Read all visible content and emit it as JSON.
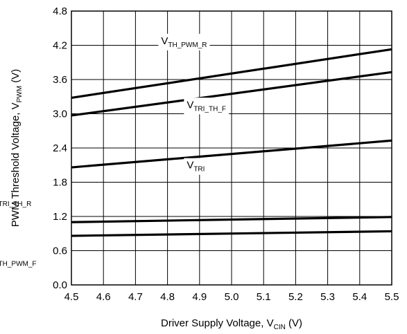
{
  "chart_data": {
    "type": "line",
    "xlabel": {
      "main": "Driver Supply Voltage, V",
      "sub": "CIN",
      "unit": " (V)"
    },
    "ylabel": {
      "main": "PWM Threshold Voltage, V",
      "sub": "PWM",
      "unit": " (V)"
    },
    "xlim": [
      4.5,
      5.5
    ],
    "ylim": [
      0.0,
      4.8
    ],
    "xticks": [
      "4.5",
      "4.6",
      "4.7",
      "4.8",
      "4.9",
      "5.0",
      "5.1",
      "5.2",
      "5.3",
      "5.4",
      "5.5"
    ],
    "yticks": [
      "0.0",
      "0.6",
      "1.2",
      "1.8",
      "2.4",
      "3.0",
      "3.6",
      "4.2",
      "4.8"
    ],
    "grid": true,
    "series": [
      {
        "name": "V_TH_PWM_R",
        "label_main": "V",
        "label_sub": "TH_PWM_R",
        "x": [
          4.5,
          5.5
        ],
        "y": [
          3.28,
          4.13
        ]
      },
      {
        "name": "V_TRI_TH_F",
        "label_main": "V",
        "label_sub": "TRI_TH_F",
        "x": [
          4.5,
          5.5
        ],
        "y": [
          2.97,
          3.73
        ]
      },
      {
        "name": "V_TRI",
        "label_main": "V",
        "label_sub": "TRI",
        "x": [
          4.5,
          5.5
        ],
        "y": [
          2.06,
          2.53
        ]
      },
      {
        "name": "V_TRI_TH_R",
        "label_main": "V",
        "label_sub": "TRI_TH_R",
        "x": [
          4.5,
          5.5
        ],
        "y": [
          1.1,
          1.19
        ]
      },
      {
        "name": "V_TH_PWM_F",
        "label_main": "V",
        "label_sub": "TH_PWM_F",
        "x": [
          4.5,
          5.5
        ],
        "y": [
          0.86,
          0.94
        ]
      }
    ],
    "annotations": [
      {
        "series": 0,
        "x": 4.78,
        "y": 4.22
      },
      {
        "series": 1,
        "x": 4.86,
        "y": 3.1
      },
      {
        "series": 2,
        "x": 4.86,
        "y": 2.04
      },
      {
        "series": 3,
        "x": 4.25,
        "y": 1.43
      },
      {
        "series": 4,
        "x": 4.25,
        "y": 0.38
      }
    ]
  }
}
